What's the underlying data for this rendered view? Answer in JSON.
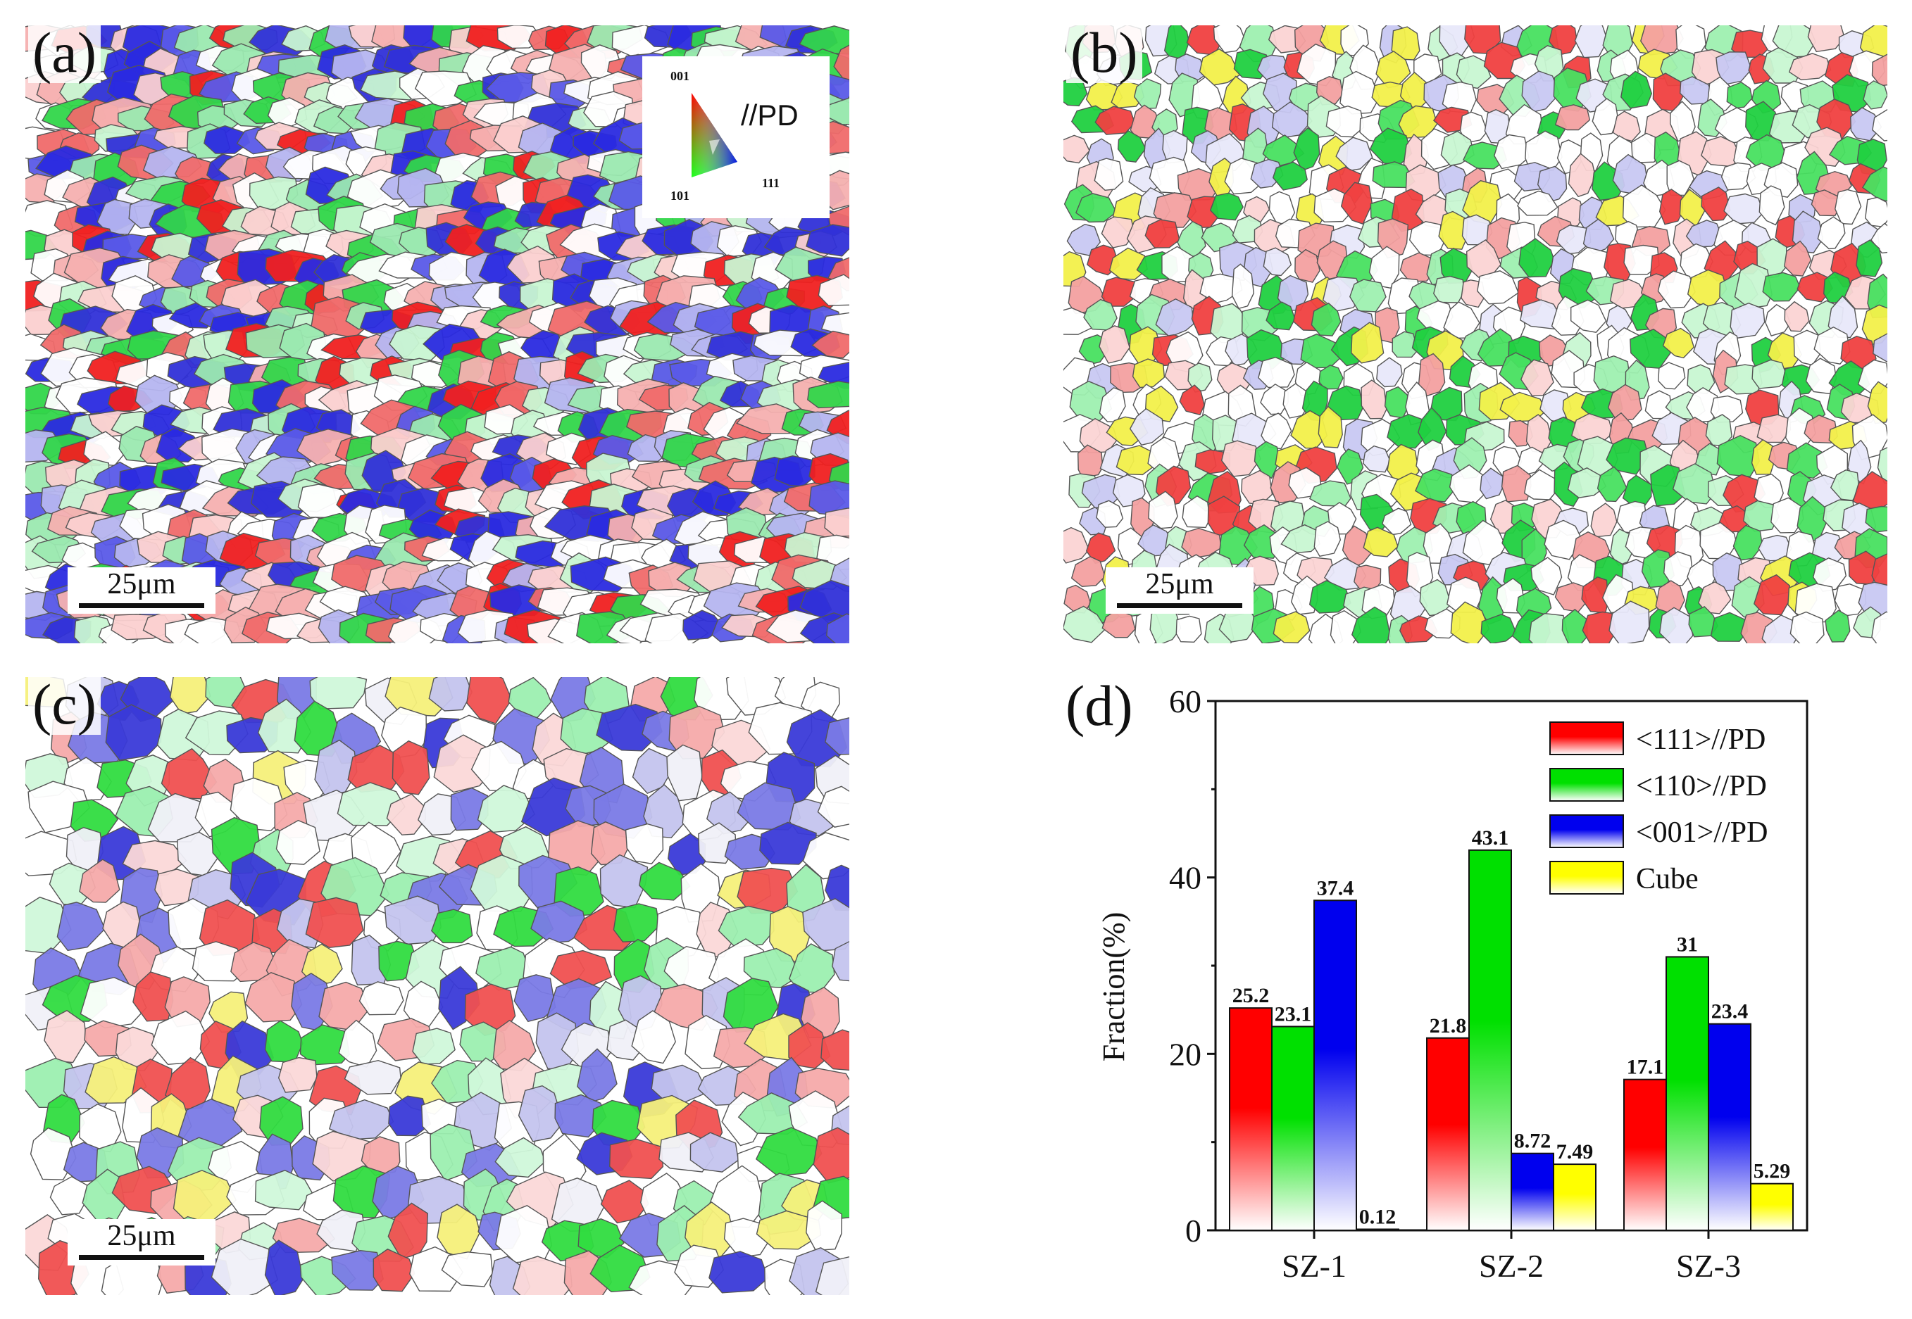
{
  "panels": [
    {
      "label": "(a)",
      "scale_bar": "25μm",
      "ipf_key": {
        "corner_001": "001",
        "corner_101": "101",
        "corner_111": "111",
        "direction": "//PD"
      }
    },
    {
      "label": "(b)",
      "scale_bar": "25μm"
    },
    {
      "label": "(c)",
      "scale_bar": "25μm"
    }
  ],
  "chart_data": {
    "type": "bar",
    "panel_label": "(d)",
    "categories": [
      "SZ-1",
      "SZ-2",
      "SZ-3"
    ],
    "series": [
      {
        "name": "<111>//PD",
        "color": "#ff0000",
        "values": [
          25.2,
          21.8,
          17.1
        ],
        "labels": [
          "25.2",
          "21.8",
          "17.1"
        ]
      },
      {
        "name": "<110>//PD",
        "color": "#00e000",
        "values": [
          23.1,
          43.1,
          31
        ],
        "labels": [
          "23.1",
          "43.1",
          "31"
        ]
      },
      {
        "name": "<001>//PD",
        "color": "#0000ee",
        "values": [
          37.4,
          8.72,
          23.4
        ],
        "labels": [
          "37.4",
          "8.72",
          "23.4"
        ]
      },
      {
        "name": "Cube",
        "color": "#ffff00",
        "values": [
          0.12,
          7.49,
          5.29
        ],
        "labels": [
          "0.12",
          "7.49",
          "5.29"
        ]
      }
    ],
    "ylabel": "Fraction(%)",
    "xlabel": "",
    "ylim": [
      0,
      60
    ],
    "yticks": [
      "0",
      "20",
      "40",
      "60"
    ],
    "legend_position": "top-right"
  }
}
